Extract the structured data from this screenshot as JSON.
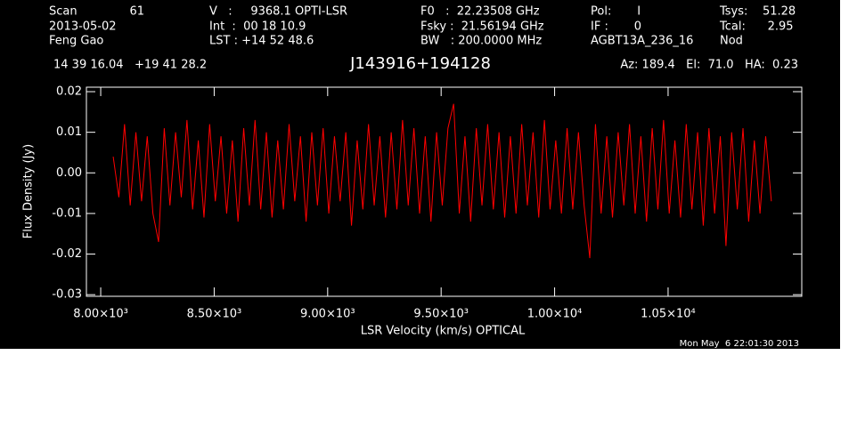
{
  "chart_data": {
    "type": "line",
    "title": "J143916+194128",
    "header": {
      "scan_label": "Scan",
      "scan": "61",
      "date": "2013-05-02",
      "observer": "Feng Gao",
      "velocity": "V   :     9368.1 OPTI-LSR",
      "int": "Int  :  00 18 10.9",
      "lst": "LST : +14 52 48.6",
      "f0": "F0   :  22.23508 GHz",
      "fsky": "Fsky :  21.56194 GHz",
      "bw": "BW   : 200.0000 MHz",
      "pol": "Pol:       I",
      "if": "IF :       0",
      "project": "AGBT13A_236_16",
      "tsys": "Tsys:    51.28",
      "tcal": "Tcal:      2.95",
      "proc": "Nod",
      "coords": "14 39 16.04   +19 41 28.2",
      "azel": "Az: 189.4   El:  71.0   HA:  0.23"
    },
    "xlabel": "LSR Velocity (km/s) OPTICAL",
    "ylabel": "Flux Density (Jy)",
    "timestamp": "Mon May  6 22:01:30 2013",
    "xlim": [
      7937,
      11089
    ],
    "ylim": [
      -0.0304,
      0.0211
    ],
    "xticks": [
      {
        "value": 8000,
        "label": "8.00×10³"
      },
      {
        "value": 8500,
        "label": "8.50×10³"
      },
      {
        "value": 9000,
        "label": "9.00×10³"
      },
      {
        "value": 9500,
        "label": "9.50×10³"
      },
      {
        "value": 10000,
        "label": "1.00×10⁴"
      },
      {
        "value": 10500,
        "label": "1.05×10⁴"
      }
    ],
    "yticks": [
      0.02,
      0.01,
      {
        "value": 0,
        "label": "0.00"
      },
      -0.01,
      -0.02,
      -0.03
    ],
    "x": [
      8055,
      8080,
      8105,
      8130,
      8155,
      8180,
      8205,
      8230,
      8255,
      8280,
      8305,
      8330,
      8355,
      8380,
      8405,
      8430,
      8455,
      8480,
      8505,
      8530,
      8555,
      8580,
      8605,
      8630,
      8655,
      8680,
      8705,
      8730,
      8755,
      8780,
      8805,
      8830,
      8855,
      8880,
      8905,
      8930,
      8955,
      8980,
      9005,
      9030,
      9055,
      9080,
      9105,
      9130,
      9155,
      9180,
      9205,
      9230,
      9255,
      9280,
      9305,
      9330,
      9355,
      9380,
      9405,
      9430,
      9455,
      9480,
      9505,
      9530,
      9555,
      9580,
      9605,
      9630,
      9655,
      9680,
      9705,
      9730,
      9755,
      9780,
      9805,
      9830,
      9855,
      9880,
      9905,
      9930,
      9955,
      9980,
      10005,
      10030,
      10055,
      10080,
      10105,
      10130,
      10155,
      10180,
      10205,
      10230,
      10255,
      10280,
      10305,
      10330,
      10355,
      10380,
      10405,
      10430,
      10455,
      10480,
      10505,
      10530,
      10555,
      10580,
      10605,
      10630,
      10655,
      10680,
      10705,
      10730,
      10755,
      10780,
      10805,
      10830,
      10855,
      10880,
      10905,
      10930,
      10955
    ],
    "series": [
      {
        "color": "#ff0000",
        "values": [
          0.004,
          -0.006,
          0.012,
          -0.008,
          0.01,
          -0.007,
          0.009,
          -0.01,
          -0.017,
          0.011,
          -0.008,
          0.01,
          -0.006,
          0.013,
          -0.009,
          0.008,
          -0.011,
          0.012,
          -0.007,
          0.009,
          -0.01,
          0.008,
          -0.012,
          0.011,
          -0.008,
          0.013,
          -0.009,
          0.01,
          -0.011,
          0.008,
          -0.009,
          0.012,
          -0.007,
          0.009,
          -0.012,
          0.01,
          -0.008,
          0.011,
          -0.01,
          0.009,
          -0.007,
          0.01,
          -0.013,
          0.008,
          -0.009,
          0.012,
          -0.008,
          0.009,
          -0.011,
          0.01,
          -0.009,
          0.013,
          -0.008,
          0.011,
          -0.01,
          0.009,
          -0.012,
          0.01,
          -0.008,
          0.011,
          0.017,
          -0.01,
          0.009,
          -0.012,
          0.011,
          -0.008,
          0.012,
          -0.009,
          0.01,
          -0.011,
          0.009,
          -0.01,
          0.012,
          -0.008,
          0.01,
          -0.011,
          0.013,
          -0.009,
          0.008,
          -0.01,
          0.011,
          -0.009,
          0.01,
          -0.008,
          -0.021,
          0.012,
          -0.01,
          0.009,
          -0.011,
          0.01,
          -0.008,
          0.012,
          -0.01,
          0.009,
          -0.012,
          0.011,
          -0.009,
          0.013,
          -0.01,
          0.008,
          -0.011,
          0.012,
          -0.009,
          0.01,
          -0.013,
          0.011,
          -0.01,
          0.009,
          -0.018,
          0.01,
          -0.009,
          0.011,
          -0.012,
          0.008,
          -0.01,
          0.009,
          -0.007
        ]
      }
    ]
  }
}
